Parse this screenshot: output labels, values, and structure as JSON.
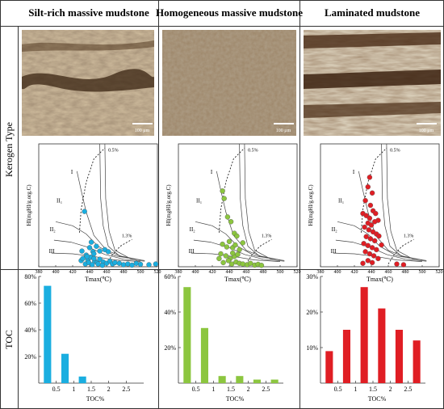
{
  "row_labels": {
    "kerogen": "Kerogen Type",
    "toc": "TOC"
  },
  "columns": [
    {
      "title": "Silt-rich massive mudstone",
      "color": "#1aaee0"
    },
    {
      "title": "Homogeneous massive mudstone",
      "color": "#8cc63f"
    },
    {
      "title": "Laminated mudstone",
      "color": "#e01e24"
    }
  ],
  "micrograph": {
    "scale_bar_label": "100 μm"
  },
  "kerogen_chart": {
    "x_label": "Tmax(℃)",
    "y_label": "HI(mgHI/g.org.C)",
    "x_ticks": [
      "380",
      "400",
      "420",
      "440",
      "460",
      "480",
      "500",
      "520"
    ],
    "type_labels": [
      "I",
      "II₁",
      "II₂",
      "III"
    ],
    "ro_labels": [
      "0.5%",
      "1.3%"
    ]
  },
  "chart_data": [
    {
      "type": "scatter",
      "title": "Silt-rich massive mudstone",
      "xlabel": "Tmax(℃)",
      "ylabel": "HI(mgHI/g.org.C)",
      "xlim": [
        380,
        520
      ],
      "ylim": [
        0,
        900
      ],
      "points": [
        [
          434,
          405
        ],
        [
          431,
          115
        ],
        [
          436,
          85
        ],
        [
          440,
          140
        ],
        [
          442,
          180
        ],
        [
          444,
          110
        ],
        [
          445,
          95
        ],
        [
          448,
          150
        ],
        [
          452,
          115
        ],
        [
          458,
          125
        ],
        [
          462,
          110
        ],
        [
          430,
          45
        ],
        [
          432,
          60
        ],
        [
          438,
          50
        ],
        [
          441,
          70
        ],
        [
          446,
          40
        ],
        [
          449,
          30
        ],
        [
          452,
          55
        ],
        [
          456,
          35
        ],
        [
          460,
          25
        ],
        [
          464,
          40
        ],
        [
          467,
          20
        ],
        [
          470,
          30
        ],
        [
          475,
          25
        ],
        [
          480,
          15
        ],
        [
          485,
          20
        ],
        [
          490,
          12
        ],
        [
          495,
          25
        ],
        [
          500,
          18
        ],
        [
          510,
          15
        ],
        [
          518,
          20
        ],
        [
          435,
          20
        ],
        [
          439,
          30
        ],
        [
          443,
          15
        ],
        [
          450,
          20
        ],
        [
          455,
          10
        ],
        [
          445,
          60
        ],
        [
          437,
          75
        ]
      ]
    },
    {
      "type": "bar",
      "title": "Silt-rich massive mudstone",
      "xlabel": "TOC%",
      "ylabel": "TOC",
      "ylim": [
        0,
        80
      ],
      "x": [
        0.25,
        0.75,
        1.25
      ],
      "values": [
        73,
        22,
        5
      ],
      "y_ticks": [
        "20%",
        "40%",
        "60%",
        "80%"
      ],
      "x_ticks": [
        "0.5",
        "1",
        "1.5",
        "2",
        "2.5"
      ]
    },
    {
      "type": "scatter",
      "title": "Homogeneous massive mudstone",
      "xlabel": "Tmax(℃)",
      "ylabel": "HI(mgHI/g.org.C)",
      "xlim": [
        380,
        520
      ],
      "ylim": [
        0,
        900
      ],
      "points": [
        [
          432,
          555
        ],
        [
          434,
          500
        ],
        [
          438,
          365
        ],
        [
          442,
          330
        ],
        [
          446,
          245
        ],
        [
          449,
          225
        ],
        [
          432,
          165
        ],
        [
          437,
          145
        ],
        [
          440,
          185
        ],
        [
          444,
          140
        ],
        [
          447,
          160
        ],
        [
          452,
          125
        ],
        [
          456,
          175
        ],
        [
          430,
          95
        ],
        [
          436,
          80
        ],
        [
          441,
          60
        ],
        [
          446,
          75
        ],
        [
          450,
          90
        ],
        [
          433,
          30
        ],
        [
          439,
          45
        ],
        [
          443,
          20
        ],
        [
          448,
          35
        ],
        [
          452,
          25
        ],
        [
          456,
          20
        ],
        [
          461,
          15
        ],
        [
          465,
          25
        ],
        [
          470,
          12
        ],
        [
          474,
          18
        ],
        [
          478,
          10
        ],
        [
          444,
          100
        ],
        [
          428,
          60
        ]
      ]
    },
    {
      "type": "bar",
      "title": "Homogeneous massive mudstone",
      "xlabel": "TOC%",
      "ylabel": "TOC",
      "ylim": [
        0,
        60
      ],
      "x": [
        0.25,
        0.75,
        1.25,
        1.75,
        2.25,
        2.75
      ],
      "values": [
        54,
        31,
        4,
        4,
        2,
        2
      ],
      "y_ticks": [
        "20%",
        "40%",
        "60%"
      ],
      "x_ticks": [
        "0.5",
        "1",
        "1.5",
        "2",
        "2.5"
      ]
    },
    {
      "type": "scatter",
      "title": "Laminated mudstone",
      "xlabel": "Tmax(℃)",
      "ylabel": "HI(mgHI/g.org.C)",
      "xlim": [
        380,
        520
      ],
      "ylim": [
        0,
        900
      ],
      "points": [
        [
          438,
          655
        ],
        [
          436,
          585
        ],
        [
          441,
          540
        ],
        [
          433,
          485
        ],
        [
          439,
          450
        ],
        [
          442,
          410
        ],
        [
          430,
          390
        ],
        [
          434,
          375
        ],
        [
          438,
          355
        ],
        [
          445,
          390
        ],
        [
          448,
          340
        ],
        [
          436,
          320
        ],
        [
          440,
          305
        ],
        [
          444,
          330
        ],
        [
          432,
          290
        ],
        [
          437,
          270
        ],
        [
          442,
          255
        ],
        [
          446,
          240
        ],
        [
          449,
          225
        ],
        [
          434,
          220
        ],
        [
          439,
          205
        ],
        [
          444,
          190
        ],
        [
          431,
          170
        ],
        [
          436,
          155
        ],
        [
          441,
          140
        ],
        [
          446,
          125
        ],
        [
          433,
          110
        ],
        [
          438,
          95
        ],
        [
          443,
          80
        ],
        [
          448,
          60
        ],
        [
          436,
          45
        ],
        [
          441,
          30
        ],
        [
          452,
          160
        ],
        [
          470,
          20
        ],
        [
          478,
          15
        ],
        [
          430,
          25
        ]
      ]
    },
    {
      "type": "bar",
      "title": "Laminated mudstone",
      "xlabel": "TOC%",
      "ylabel": "TOC",
      "ylim": [
        0,
        30
      ],
      "x": [
        0.25,
        0.75,
        1.25,
        1.75,
        2.25,
        2.75
      ],
      "values": [
        9,
        15,
        27,
        21,
        15,
        12
      ],
      "y_ticks": [
        "10%",
        "20%",
        "30%"
      ],
      "x_ticks": [
        "0.5",
        "1",
        "1.5",
        "2",
        "2.5"
      ]
    }
  ]
}
